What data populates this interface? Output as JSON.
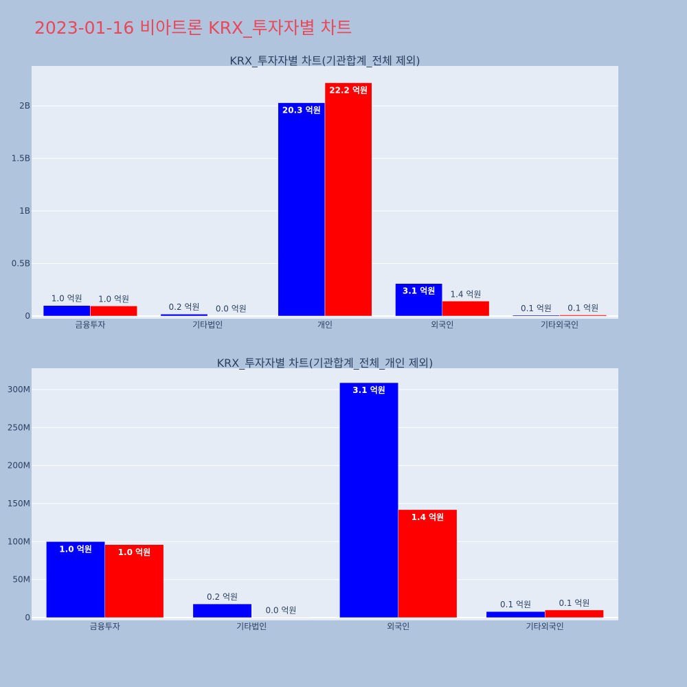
{
  "page": {
    "title": "2023-01-16 비아트론 KRX_투자자별 차트",
    "title_color": "#e8485a",
    "background": "#b0c4de",
    "plot_background": "#e5ecf6"
  },
  "chart_data": [
    {
      "type": "bar",
      "title": "KRX_투자자별 차트(기관합계_전체 제외)",
      "xlabel": "",
      "ylabel": "",
      "categories": [
        "금융투자",
        "기타법인",
        "개인",
        "외국인",
        "기타외국인"
      ],
      "series": [
        {
          "color": "#0000ff",
          "values": [
            100000000,
            18000000,
            2030000000,
            309000000,
            8000000
          ],
          "labels": [
            "1.0 억원",
            "0.2 억원",
            "20.3 억원",
            "3.1 억원",
            "0.1 억원"
          ]
        },
        {
          "color": "#ff0000",
          "values": [
            96000000,
            500000,
            2220000000,
            142000000,
            10000000
          ],
          "labels": [
            "1.0 억원",
            "0.0 억원",
            "22.2 억원",
            "1.4 억원",
            "0.1 억원"
          ]
        }
      ],
      "ylim": [
        0,
        2380000000
      ],
      "yticks": [
        0,
        500000000,
        1000000000,
        1500000000,
        2000000000
      ],
      "ytick_labels": [
        "0",
        "0.5B",
        "1B",
        "1.5B",
        "2B"
      ],
      "grid": true,
      "legend": "none"
    },
    {
      "type": "bar",
      "title": "KRX_투자자별 차트(기관합계_전체_개인 제외)",
      "xlabel": "",
      "ylabel": "",
      "categories": [
        "금융투자",
        "기타법인",
        "외국인",
        "기타외국인"
      ],
      "series": [
        {
          "color": "#0000ff",
          "values": [
            100000000,
            18000000,
            309000000,
            8000000
          ],
          "labels": [
            "1.0 억원",
            "0.2 억원",
            "3.1 억원",
            "0.1 억원"
          ]
        },
        {
          "color": "#ff0000",
          "values": [
            96000000,
            500000,
            142000000,
            10000000
          ],
          "labels": [
            "1.0 억원",
            "0.0 억원",
            "1.4 억원",
            "0.1 억원"
          ]
        }
      ],
      "ylim": [
        0,
        328000000
      ],
      "yticks": [
        0,
        50000000,
        100000000,
        150000000,
        200000000,
        250000000,
        300000000
      ],
      "ytick_labels": [
        "0",
        "50M",
        "100M",
        "150M",
        "200M",
        "250M",
        "300M"
      ],
      "grid": true,
      "legend": "none"
    }
  ]
}
